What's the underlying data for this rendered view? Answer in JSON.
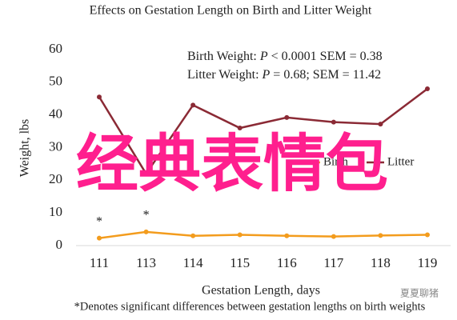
{
  "chart_data": {
    "type": "line",
    "title": "Effects on Gestation Length on Birth and Litter Weight",
    "x_label": "Gestation Length, days",
    "y_label": "Weight, lbs",
    "categories": [
      "111",
      "113",
      "114",
      "115",
      "116",
      "117",
      "118",
      "119"
    ],
    "series": [
      {
        "name": "Birth",
        "color": "#f39c1d",
        "values": [
          2.3,
          4.2,
          3.0,
          3.3,
          3.0,
          2.8,
          3.1,
          3.3
        ]
      },
      {
        "name": "Litter",
        "color": "#8b2a35",
        "values": [
          45.5,
          22,
          43,
          36,
          39.2,
          37.8,
          37.2,
          48
        ]
      }
    ],
    "significance_labels": [
      "*",
      "*",
      null,
      null,
      null,
      null,
      null,
      null
    ],
    "annotations": [
      [
        "Birth Weight: ",
        "P",
        " < 0.0001 SEM = 0.38"
      ],
      [
        "Litter Weight: ",
        "P",
        " = 0.68; SEM = 11.42"
      ]
    ],
    "footnote": "*Denotes significant differences between gestation lengths on birth weights",
    "overlay_text": "经典表情包",
    "watermark": "夏夏聊猪",
    "ylim": [
      0,
      60
    ],
    "yticks": [
      0,
      10,
      20,
      30,
      40,
      50,
      60
    ],
    "grid": false
  }
}
